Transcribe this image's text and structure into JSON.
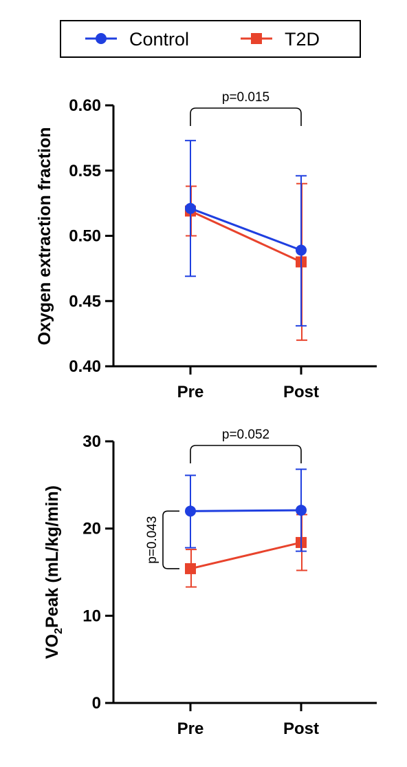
{
  "legend": {
    "items": [
      {
        "label": "Control",
        "color": "#1f3fe0",
        "marker": "circle"
      },
      {
        "label": "T2D",
        "color": "#e8432c",
        "marker": "square"
      }
    ]
  },
  "chart_data": [
    {
      "type": "line",
      "categories": [
        "Pre",
        "Post"
      ],
      "ylabel": "Oxygen extraction fraction",
      "ylim": [
        0.4,
        0.6
      ],
      "yticks": [
        "0.40",
        "0.45",
        "0.50",
        "0.55",
        "0.60"
      ],
      "series": [
        {
          "name": "Control",
          "values": [
            0.521,
            0.489
          ],
          "error_low": [
            0.469,
            0.431
          ],
          "error_high": [
            0.573,
            0.546
          ]
        },
        {
          "name": "T2D",
          "values": [
            0.519,
            0.48
          ],
          "error_low": [
            0.5,
            0.42
          ],
          "error_high": [
            0.538,
            0.54
          ]
        }
      ],
      "annotations": [
        {
          "text": "p=0.015",
          "type": "bracket-horizontal",
          "between": [
            "Pre",
            "Post"
          ]
        }
      ]
    },
    {
      "type": "line",
      "categories": [
        "Pre",
        "Post"
      ],
      "ylabel_main": "VO",
      "ylabel_sub": "2",
      "ylabel_rest": "Peak (mL/kg/min)",
      "ylim": [
        0,
        30
      ],
      "yticks": [
        "0",
        "10",
        "20",
        "30"
      ],
      "series": [
        {
          "name": "Control",
          "values": [
            22.0,
            22.1
          ],
          "error_low": [
            17.8,
            17.4
          ],
          "error_high": [
            26.1,
            26.8
          ]
        },
        {
          "name": "T2D",
          "values": [
            15.4,
            18.4
          ],
          "error_low": [
            13.3,
            15.2
          ],
          "error_high": [
            17.6,
            21.6
          ]
        }
      ],
      "annotations": [
        {
          "text": "p=0.052",
          "type": "bracket-horizontal",
          "between": [
            "Pre",
            "Post"
          ]
        },
        {
          "text": "p=0.043",
          "type": "bracket-vertical",
          "between": [
            "Control",
            "T2D"
          ],
          "at": "Pre"
        }
      ]
    }
  ]
}
